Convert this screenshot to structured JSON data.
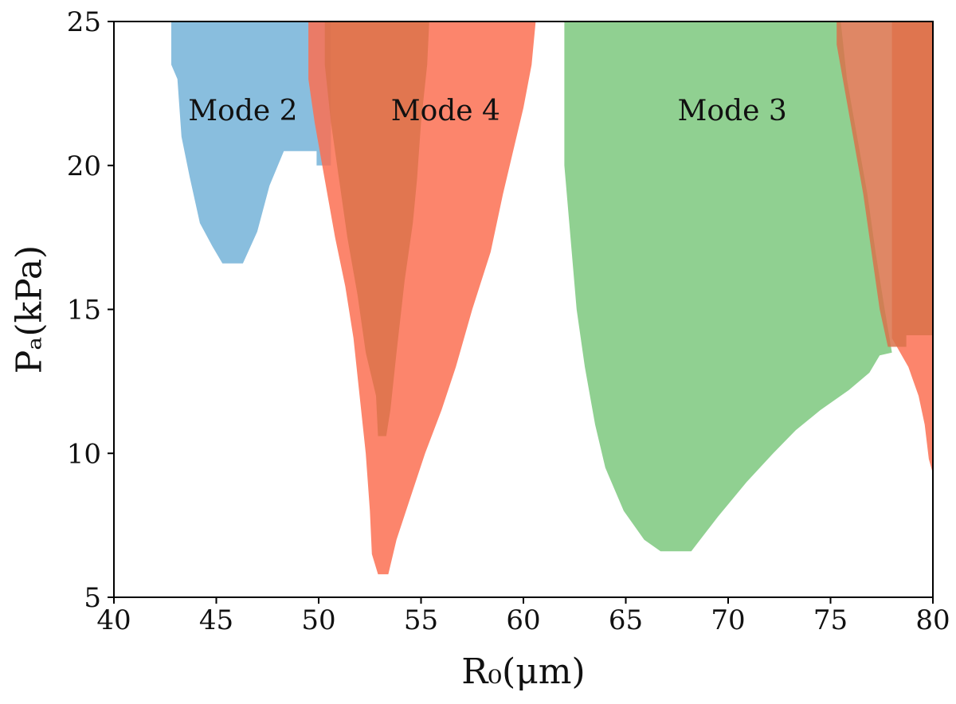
{
  "chart_data": {
    "type": "area",
    "xlabel": "R₀(μm)",
    "ylabel": "Pₐ(kPa)",
    "xlim": [
      40,
      80
    ],
    "ylim": [
      5,
      25
    ],
    "x_ticks": [
      40,
      45,
      50,
      55,
      60,
      65,
      70,
      75,
      80
    ],
    "y_ticks": [
      5,
      10,
      15,
      20,
      25
    ],
    "x_tick_labels": [
      "40",
      "45",
      "50",
      "55",
      "60",
      "65",
      "70",
      "75",
      "80"
    ],
    "y_tick_labels": [
      "5",
      "10",
      "15",
      "20",
      "25"
    ],
    "grid": false,
    "legend": "none",
    "annotations": [
      {
        "text": "Mode 2",
        "x": 46.3,
        "y": 21.9
      },
      {
        "text": "Mode 4",
        "x": 56.2,
        "y": 21.9
      },
      {
        "text": "Mode 3",
        "x": 70.2,
        "y": 21.9
      }
    ],
    "series": [
      {
        "color": "#6baed6",
        "opacity": 0.8,
        "polygon": [
          [
            42.8,
            25
          ],
          [
            50.6,
            25
          ],
          [
            50.6,
            20.0
          ],
          [
            49.9,
            20.0
          ],
          [
            49.9,
            20.5
          ],
          [
            48.3,
            20.5
          ],
          [
            47.6,
            19.3
          ],
          [
            47.0,
            17.7
          ],
          [
            46.3,
            16.6
          ],
          [
            45.3,
            16.6
          ],
          [
            44.8,
            17.2
          ],
          [
            44.2,
            18.0
          ],
          [
            43.7,
            19.6
          ],
          [
            43.3,
            21.0
          ],
          [
            43.1,
            23.0
          ],
          [
            42.8,
            23.5
          ]
        ]
      },
      {
        "color": "#fb7052",
        "opacity": 0.85,
        "polygon": [
          [
            49.5,
            25
          ],
          [
            60.6,
            25
          ],
          [
            60.4,
            23.5
          ],
          [
            60.0,
            22.0
          ],
          [
            59.5,
            20.5
          ],
          [
            59.0,
            19.0
          ],
          [
            58.4,
            17.0
          ],
          [
            57.5,
            15.0
          ],
          [
            56.7,
            13.0
          ],
          [
            56.0,
            11.5
          ],
          [
            55.2,
            10.0
          ],
          [
            54.5,
            8.5
          ],
          [
            53.8,
            7.0
          ],
          [
            53.4,
            5.8
          ],
          [
            52.9,
            5.8
          ],
          [
            52.6,
            6.5
          ],
          [
            52.5,
            8.0
          ],
          [
            52.3,
            10.0
          ],
          [
            52.0,
            12.0
          ],
          [
            51.7,
            14.0
          ],
          [
            51.3,
            15.8
          ],
          [
            50.8,
            17.5
          ],
          [
            50.3,
            19.5
          ],
          [
            49.8,
            21.5
          ],
          [
            49.5,
            23.0
          ]
        ]
      },
      {
        "color": "#d9724a",
        "opacity": 0.8,
        "polygon": [
          [
            50.3,
            25
          ],
          [
            55.4,
            25
          ],
          [
            55.3,
            23.5
          ],
          [
            55.0,
            21.5
          ],
          [
            54.8,
            19.5
          ],
          [
            54.6,
            18.0
          ],
          [
            54.2,
            16.0
          ],
          [
            53.8,
            13.5
          ],
          [
            53.5,
            11.5
          ],
          [
            53.3,
            10.6
          ],
          [
            52.9,
            10.6
          ],
          [
            52.8,
            12.0
          ],
          [
            52.3,
            13.5
          ],
          [
            51.9,
            15.5
          ],
          [
            51.4,
            17.5
          ],
          [
            51.0,
            19.5
          ],
          [
            50.6,
            21.5
          ],
          [
            50.3,
            23.5
          ]
        ]
      },
      {
        "color": "#74c476",
        "opacity": 0.8,
        "polygon": [
          [
            62.0,
            25
          ],
          [
            75.5,
            25
          ],
          [
            75.8,
            23.0
          ],
          [
            76.3,
            21.0
          ],
          [
            76.8,
            19.0
          ],
          [
            77.2,
            17.0
          ],
          [
            77.6,
            15.2
          ],
          [
            78.0,
            13.5
          ],
          [
            77.4,
            13.4
          ],
          [
            76.9,
            12.8
          ],
          [
            75.9,
            12.2
          ],
          [
            74.5,
            11.5
          ],
          [
            73.3,
            10.8
          ],
          [
            72.2,
            10.0
          ],
          [
            70.9,
            9.0
          ],
          [
            69.5,
            7.8
          ],
          [
            68.2,
            6.6
          ],
          [
            66.7,
            6.6
          ],
          [
            65.9,
            7.0
          ],
          [
            64.9,
            8.0
          ],
          [
            64.0,
            9.5
          ],
          [
            63.5,
            11.0
          ],
          [
            63.0,
            13.0
          ],
          [
            62.6,
            15.0
          ],
          [
            62.3,
            17.5
          ],
          [
            62.0,
            20.0
          ]
        ]
      },
      {
        "color": "#fb7052",
        "opacity": 0.85,
        "polygon": [
          [
            78.0,
            25
          ],
          [
            80.0,
            25
          ],
          [
            80.0,
            9.3
          ],
          [
            79.8,
            9.8
          ],
          [
            79.6,
            11.0
          ],
          [
            79.3,
            12.0
          ],
          [
            78.8,
            13.0
          ],
          [
            78.0,
            14.0
          ]
        ]
      },
      {
        "color": "#d9724a",
        "opacity": 0.85,
        "polygon": [
          [
            75.3,
            25
          ],
          [
            80.0,
            25
          ],
          [
            80.0,
            14.1
          ],
          [
            78.7,
            14.1
          ],
          [
            78.7,
            13.7
          ],
          [
            77.8,
            13.7
          ],
          [
            77.4,
            15.0
          ],
          [
            77.0,
            17.0
          ],
          [
            76.6,
            19.0
          ],
          [
            76.1,
            21.0
          ],
          [
            75.6,
            23.0
          ],
          [
            75.3,
            24.2
          ]
        ]
      }
    ]
  }
}
